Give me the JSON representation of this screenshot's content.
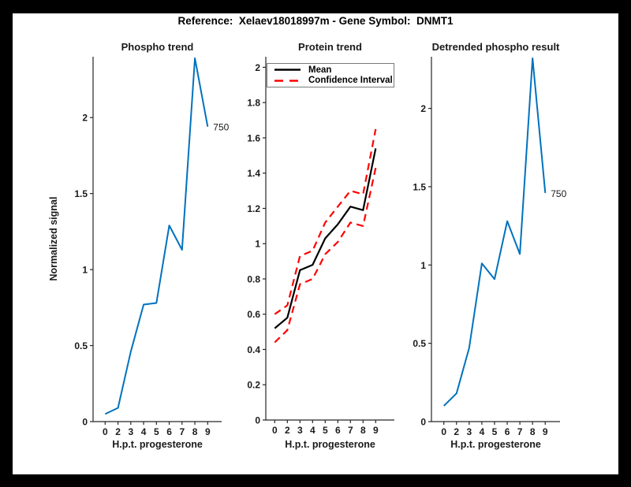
{
  "figure_title": "Reference:  Xelaev18018997m - Gene Symbol:  DNMT1",
  "ylabel_left": "Normalized signal",
  "xlabel": "H.p.t. progesterone",
  "legend": {
    "mean": "Mean",
    "ci": "Confidence Interval"
  },
  "colors": {
    "line_blue": "#0072BD",
    "mean_black": "#000000",
    "ci_red": "#ff0000",
    "axis": "#262626",
    "background": "#ffffff",
    "frame": "#000000"
  },
  "chart_data": [
    {
      "type": "line",
      "title": "Phospho trend",
      "xlabel": "H.p.t. progesterone",
      "ylabel": "Normalized signal",
      "categories": [
        "0",
        "2",
        "3",
        "4",
        "5",
        "6",
        "7",
        "8",
        "9"
      ],
      "ytick_values": [
        0,
        0.5,
        1,
        1.5,
        2
      ],
      "ytick_labels": [
        "0",
        "0.5",
        "1",
        "1.5",
        "2"
      ],
      "ylim": [
        0,
        2.4
      ],
      "grid": false,
      "series": [
        {
          "name": "phospho-signal",
          "color": "#0072BD",
          "width": 2,
          "dashed": false,
          "values": [
            0.05,
            0.09,
            0.46,
            0.77,
            0.78,
            1.29,
            1.13,
            2.39,
            1.94
          ]
        }
      ],
      "annotation": {
        "text": "750",
        "at_index": 8
      }
    },
    {
      "type": "line",
      "title": "Protein trend",
      "xlabel": "H.p.t. progesterone",
      "ylabel": "",
      "categories": [
        "0",
        "2",
        "3",
        "4",
        "5",
        "6",
        "7",
        "8",
        "9"
      ],
      "ytick_values": [
        0,
        0.2,
        0.4,
        0.6,
        0.8,
        1,
        1.2,
        1.4,
        1.6,
        1.8,
        2
      ],
      "ytick_labels": [
        "0",
        "0.2",
        "0.4",
        "0.6",
        "0.8",
        "1",
        "1.2",
        "1.4",
        "1.6",
        "1.8",
        "2"
      ],
      "ylim": [
        0,
        2.06
      ],
      "grid": false,
      "legend_position": "top-left",
      "series": [
        {
          "name": "ci-upper",
          "color": "#ff0000",
          "width": 2.2,
          "dashed": true,
          "values": [
            0.6,
            0.65,
            0.93,
            0.96,
            1.12,
            1.21,
            1.3,
            1.28,
            1.65
          ]
        },
        {
          "name": "ci-lower",
          "color": "#ff0000",
          "width": 2.2,
          "dashed": true,
          "values": [
            0.44,
            0.51,
            0.77,
            0.8,
            0.94,
            1.01,
            1.12,
            1.1,
            1.43
          ]
        },
        {
          "name": "mean",
          "color": "#000000",
          "width": 2.2,
          "dashed": false,
          "values": [
            0.52,
            0.58,
            0.85,
            0.88,
            1.03,
            1.11,
            1.21,
            1.19,
            1.54
          ]
        }
      ]
    },
    {
      "type": "line",
      "title": "Detrended phospho result",
      "xlabel": "H.p.t. progesterone",
      "ylabel": "",
      "categories": [
        "0",
        "2",
        "3",
        "4",
        "5",
        "6",
        "7",
        "8",
        "9"
      ],
      "ytick_values": [
        0,
        0.5,
        1,
        1.5,
        2
      ],
      "ytick_labels": [
        "0",
        "0.5",
        "1",
        "1.5",
        "2"
      ],
      "ylim": [
        0,
        2.33
      ],
      "grid": false,
      "series": [
        {
          "name": "detrended-phospho",
          "color": "#0072BD",
          "width": 2,
          "dashed": false,
          "values": [
            0.1,
            0.18,
            0.47,
            1.01,
            0.91,
            1.28,
            1.07,
            2.32,
            1.46
          ]
        }
      ],
      "annotation": {
        "text": "750",
        "at_index": 8
      }
    }
  ]
}
